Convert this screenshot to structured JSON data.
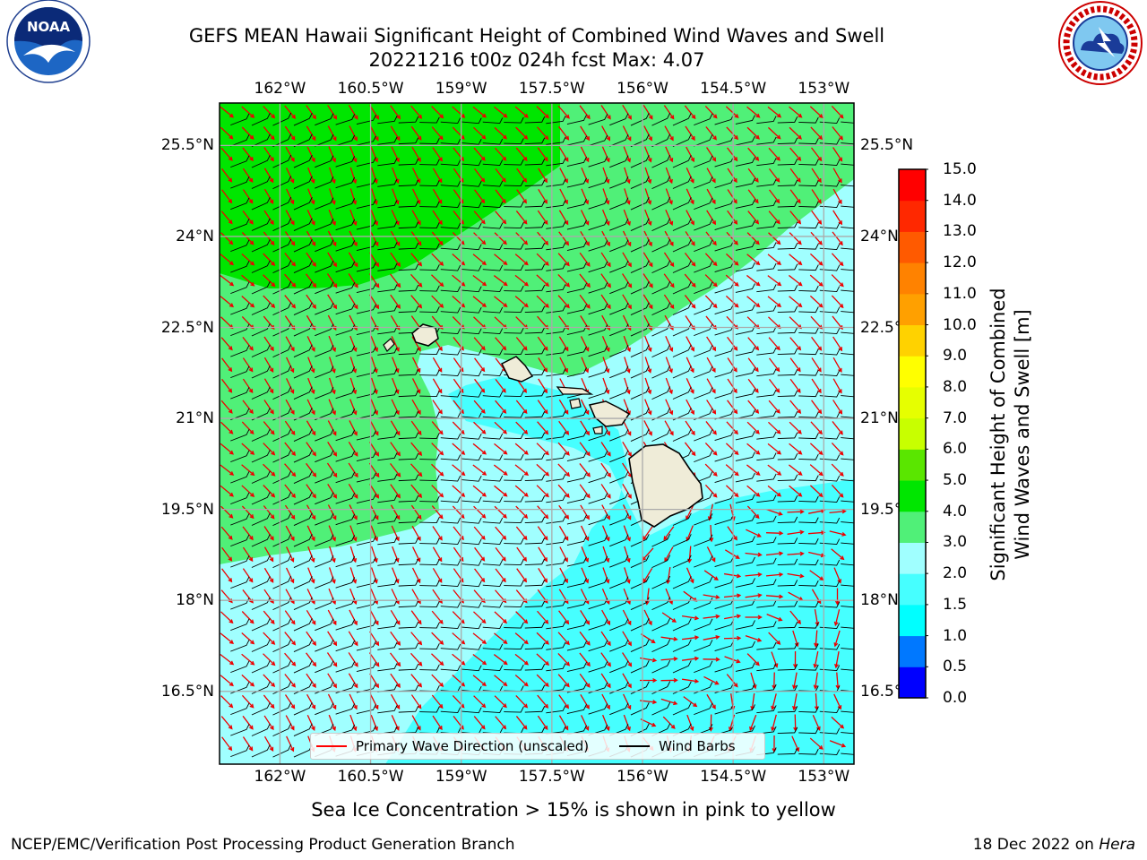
{
  "header": {
    "title_line1": "GEFS MEAN Hawaii Significant Height of Combined Wind Waves and Swell",
    "title_line2": "20221216 t00z 024h fcst   Max: 4.07"
  },
  "logos": {
    "left": "noaa-logo",
    "left_text": "NOAA",
    "right": "nws-logo"
  },
  "map": {
    "lon_ticks": [
      "162°W",
      "160.5°W",
      "159°W",
      "157.5°W",
      "156°W",
      "154.5°W",
      "153°W"
    ],
    "lat_ticks": [
      "25.5°N",
      "24°N",
      "22.5°N",
      "21°N",
      "19.5°N",
      "18°N",
      "16.5°N"
    ],
    "lon_range": [
      -163,
      -152.5
    ],
    "lat_range": [
      15.3,
      26.2
    ],
    "grid": true,
    "legend": {
      "wave_label": "Primary Wave Direction (unscaled)",
      "wave_color": "#ff0000",
      "barb_label": "Wind Barbs",
      "barb_color": "#000000"
    }
  },
  "colorbar": {
    "label_line1": "Significant Height of Combined",
    "label_line2": "Wind Waves and Swell [m]",
    "ticks": [
      "0.0",
      "0.5",
      "1.0",
      "1.5",
      "2.0",
      "3.0",
      "4.0",
      "5.0",
      "6.0",
      "7.0",
      "8.0",
      "9.0",
      "10.0",
      "11.0",
      "12.0",
      "13.0",
      "14.0",
      "15.0"
    ],
    "colors": [
      "#0000ff",
      "#0078ff",
      "#00ffff",
      "#46ffff",
      "#a0ffff",
      "#50f078",
      "#00e600",
      "#5ae600",
      "#c8ff00",
      "#e6ff00",
      "#ffff00",
      "#ffd200",
      "#ffa000",
      "#ff8200",
      "#ff5a00",
      "#ff2800",
      "#ff0000"
    ]
  },
  "colors": {
    "land": "#efecd8",
    "ocean_low": "#46ffff",
    "ocean_mid": "#a0ffff",
    "ocean_high": "#50f078",
    "ocean_max": "#00e600"
  },
  "note": "Sea Ice Concentration > 15% is shown in pink to yellow",
  "footer": {
    "left": "NCEP/EMC/Verification Post Processing Product Generation Branch",
    "right_prefix": "18 Dec 2022 on ",
    "right_host": "Hera"
  }
}
